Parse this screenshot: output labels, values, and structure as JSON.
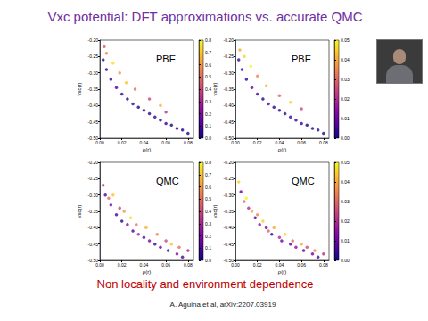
{
  "slide": {
    "title": "Vxc potential: DFT approximations vs. accurate QMC",
    "note": "Non locality and environment dependence",
    "citation": "A. Aguina et al, arXiv:2207.03919"
  },
  "chart_data": [
    {
      "type": "scatter",
      "title": "PBE",
      "x_label": "ρ(r)",
      "y_label": "vxc(r)",
      "grid": false,
      "x": [
        0.003,
        0.006,
        0.01,
        0.015,
        0.02,
        0.025,
        0.03,
        0.035,
        0.04,
        0.045,
        0.05,
        0.055,
        0.06,
        0.065,
        0.07,
        0.075,
        0.08,
        0.004,
        0.006,
        0.012,
        0.018,
        0.024,
        0.032,
        0.045,
        0.055,
        0.06
      ],
      "values": [
        -0.26,
        -0.29,
        -0.32,
        -0.345,
        -0.365,
        -0.38,
        -0.395,
        -0.405,
        -0.415,
        -0.425,
        -0.435,
        -0.445,
        -0.455,
        -0.46,
        -0.47,
        -0.475,
        -0.485,
        -0.22,
        -0.24,
        -0.27,
        -0.3,
        -0.33,
        -0.35,
        -0.38,
        -0.4,
        -0.42
      ],
      "color_values": [
        0.05,
        0.08,
        0.04,
        0.1,
        0.05,
        0.03,
        0.06,
        0.02,
        0.05,
        0.04,
        0.07,
        0.03,
        0.05,
        0.02,
        0.04,
        0.03,
        0.02,
        0.45,
        0.55,
        0.75,
        0.6,
        0.7,
        0.5,
        0.4,
        0.65,
        0.35
      ],
      "xlim": [
        0,
        0.085
      ],
      "xticks": [
        {
          "value": 0,
          "label": "0.00"
        },
        {
          "value": 0.02,
          "label": "0.02"
        },
        {
          "value": 0.04,
          "label": "0.04"
        },
        {
          "value": 0.06,
          "label": "0.06"
        },
        {
          "value": 0.08,
          "label": "0.08"
        }
      ],
      "ylim": [
        -0.5,
        -0.2
      ],
      "yticks": [
        {
          "value": -0.5,
          "label": "-0.50"
        },
        {
          "value": -0.45,
          "label": "-0.45"
        },
        {
          "value": -0.4,
          "label": "-0.40"
        },
        {
          "value": -0.35,
          "label": "-0.35"
        },
        {
          "value": -0.3,
          "label": "-0.30"
        },
        {
          "value": -0.25,
          "label": "-0.25"
        },
        {
          "value": -0.2,
          "label": "-0.20"
        }
      ],
      "colorbar": {
        "range": [
          0,
          0.8
        ],
        "ticks": [
          {
            "value": 0,
            "label": "0.0"
          },
          0.1,
          0.2,
          0.3,
          0.4,
          0.5,
          0.6,
          0.7,
          0.8
        ]
      }
    },
    {
      "type": "scatter",
      "title": "PBE",
      "x_label": "ρ(r)",
      "y_label": "vxc(r)",
      "grid": false,
      "x": [
        0.003,
        0.006,
        0.01,
        0.015,
        0.02,
        0.025,
        0.03,
        0.035,
        0.04,
        0.045,
        0.05,
        0.055,
        0.06,
        0.065,
        0.07,
        0.075,
        0.08,
        0.004,
        0.008,
        0.014,
        0.02,
        0.028,
        0.04,
        0.05,
        0.06
      ],
      "values": [
        -0.26,
        -0.29,
        -0.32,
        -0.345,
        -0.365,
        -0.38,
        -0.395,
        -0.405,
        -0.415,
        -0.425,
        -0.435,
        -0.445,
        -0.455,
        -0.46,
        -0.47,
        -0.475,
        -0.485,
        -0.23,
        -0.25,
        -0.28,
        -0.31,
        -0.34,
        -0.37,
        -0.39,
        -0.41
      ],
      "color_values": [
        0.004,
        0.006,
        0.003,
        0.008,
        0.005,
        0.002,
        0.006,
        0.003,
        0.004,
        0.002,
        0.005,
        0.003,
        0.004,
        0.002,
        0.003,
        0.002,
        0.001,
        0.04,
        0.045,
        0.05,
        0.035,
        0.04,
        0.03,
        0.045,
        0.025
      ],
      "xlim": [
        0,
        0.085
      ],
      "xticks": [
        {
          "value": 0,
          "label": "0.00"
        },
        {
          "value": 0.02,
          "label": "0.02"
        },
        {
          "value": 0.04,
          "label": "0.04"
        },
        {
          "value": 0.06,
          "label": "0.06"
        },
        {
          "value": 0.08,
          "label": "0.08"
        }
      ],
      "ylim": [
        -0.5,
        -0.2
      ],
      "yticks": [
        {
          "value": -0.5,
          "label": "-0.50"
        },
        {
          "value": -0.45,
          "label": "-0.45"
        },
        {
          "value": -0.4,
          "label": "-0.40"
        },
        {
          "value": -0.35,
          "label": "-0.35"
        },
        {
          "value": -0.3,
          "label": "-0.30"
        },
        {
          "value": -0.25,
          "label": "-0.25"
        },
        {
          "value": -0.2,
          "label": "-0.20"
        }
      ],
      "colorbar": {
        "range": [
          0,
          0.05
        ],
        "ticks": [
          {
            "value": 0,
            "label": "0.00"
          },
          {
            "value": 0.01,
            "label": "0.01"
          },
          {
            "value": 0.02,
            "label": "0.02"
          },
          {
            "value": 0.03,
            "label": "0.03"
          },
          {
            "value": 0.04,
            "label": "0.04"
          },
          {
            "value": 0.05,
            "label": "0.05"
          }
        ]
      }
    },
    {
      "type": "scatter",
      "title": "QMC",
      "x_label": "ρ(r)",
      "y_label": "vxc(r)",
      "grid": false,
      "x": [
        0.003,
        0.005,
        0.008,
        0.01,
        0.012,
        0.015,
        0.018,
        0.02,
        0.022,
        0.025,
        0.028,
        0.03,
        0.033,
        0.035,
        0.04,
        0.042,
        0.045,
        0.05,
        0.052,
        0.055,
        0.06,
        0.062,
        0.065,
        0.07,
        0.072,
        0.075,
        0.08
      ],
      "values": [
        -0.27,
        -0.3,
        -0.31,
        -0.33,
        -0.3,
        -0.36,
        -0.34,
        -0.38,
        -0.35,
        -0.39,
        -0.37,
        -0.41,
        -0.39,
        -0.42,
        -0.43,
        -0.4,
        -0.44,
        -0.45,
        -0.42,
        -0.46,
        -0.44,
        -0.47,
        -0.45,
        -0.48,
        -0.46,
        -0.49,
        -0.47
      ],
      "color_values": [
        0.3,
        0.1,
        0.5,
        0.2,
        0.7,
        0.1,
        0.4,
        0.05,
        0.6,
        0.2,
        0.75,
        0.1,
        0.5,
        0.3,
        0.1,
        0.65,
        0.2,
        0.05,
        0.55,
        0.15,
        0.4,
        0.1,
        0.7,
        0.2,
        0.5,
        0.1,
        0.3
      ],
      "xlim": [
        0,
        0.085
      ],
      "xticks": [
        {
          "value": 0,
          "label": "0.00"
        },
        {
          "value": 0.02,
          "label": "0.02"
        },
        {
          "value": 0.04,
          "label": "0.04"
        },
        {
          "value": 0.06,
          "label": "0.06"
        },
        {
          "value": 0.08,
          "label": "0.08"
        }
      ],
      "ylim": [
        -0.5,
        -0.2
      ],
      "yticks": [
        {
          "value": -0.5,
          "label": "-0.50"
        },
        {
          "value": -0.45,
          "label": "-0.45"
        },
        {
          "value": -0.4,
          "label": "-0.40"
        },
        {
          "value": -0.35,
          "label": "-0.35"
        },
        {
          "value": -0.3,
          "label": "-0.30"
        },
        {
          "value": -0.25,
          "label": "-0.25"
        },
        {
          "value": -0.2,
          "label": "-0.20"
        }
      ],
      "colorbar": {
        "range": [
          0,
          0.8
        ],
        "ticks": [
          {
            "value": 0,
            "label": "0.0"
          },
          0.1,
          0.2,
          0.3,
          0.4,
          0.5,
          0.6,
          0.7,
          0.8
        ]
      }
    },
    {
      "type": "scatter",
      "title": "QMC",
      "x_label": "ρ(r)",
      "y_label": "vxc(r)",
      "grid": false,
      "x": [
        0.003,
        0.005,
        0.008,
        0.01,
        0.012,
        0.015,
        0.018,
        0.02,
        0.022,
        0.025,
        0.028,
        0.03,
        0.033,
        0.035,
        0.04,
        0.042,
        0.045,
        0.05,
        0.052,
        0.055,
        0.06,
        0.062,
        0.065,
        0.07,
        0.072,
        0.075,
        0.08
      ],
      "values": [
        -0.26,
        -0.29,
        -0.32,
        -0.31,
        -0.34,
        -0.35,
        -0.37,
        -0.36,
        -0.39,
        -0.38,
        -0.4,
        -0.41,
        -0.42,
        -0.4,
        -0.43,
        -0.44,
        -0.42,
        -0.45,
        -0.44,
        -0.46,
        -0.45,
        -0.47,
        -0.46,
        -0.48,
        -0.47,
        -0.49,
        -0.48
      ],
      "color_values": [
        0.045,
        0.01,
        0.03,
        0.05,
        0.02,
        0.04,
        0.005,
        0.035,
        0.015,
        0.045,
        0.01,
        0.03,
        0.005,
        0.04,
        0.02,
        0.01,
        0.045,
        0.005,
        0.03,
        0.015,
        0.04,
        0.005,
        0.025,
        0.01,
        0.035,
        0.005,
        0.02
      ],
      "xlim": [
        0,
        0.085
      ],
      "xticks": [
        {
          "value": 0,
          "label": "0.00"
        },
        {
          "value": 0.02,
          "label": "0.02"
        },
        {
          "value": 0.04,
          "label": "0.04"
        },
        {
          "value": 0.06,
          "label": "0.06"
        },
        {
          "value": 0.08,
          "label": "0.08"
        }
      ],
      "ylim": [
        -0.5,
        -0.2
      ],
      "yticks": [
        {
          "value": -0.5,
          "label": "-0.50"
        },
        {
          "value": -0.45,
          "label": "-0.45"
        },
        {
          "value": -0.4,
          "label": "-0.40"
        },
        {
          "value": -0.35,
          "label": "-0.35"
        },
        {
          "value": -0.3,
          "label": "-0.30"
        },
        {
          "value": -0.25,
          "label": "-0.25"
        },
        {
          "value": -0.2,
          "label": "-0.20"
        }
      ],
      "colorbar": {
        "range": [
          0,
          0.05
        ],
        "ticks": [
          {
            "value": 0,
            "label": "0.00"
          },
          {
            "value": 0.01,
            "label": "0.01"
          },
          {
            "value": 0.02,
            "label": "0.02"
          },
          {
            "value": 0.03,
            "label": "0.03"
          },
          {
            "value": 0.04,
            "label": "0.04"
          },
          {
            "value": 0.05,
            "label": "0.05"
          }
        ]
      }
    }
  ]
}
